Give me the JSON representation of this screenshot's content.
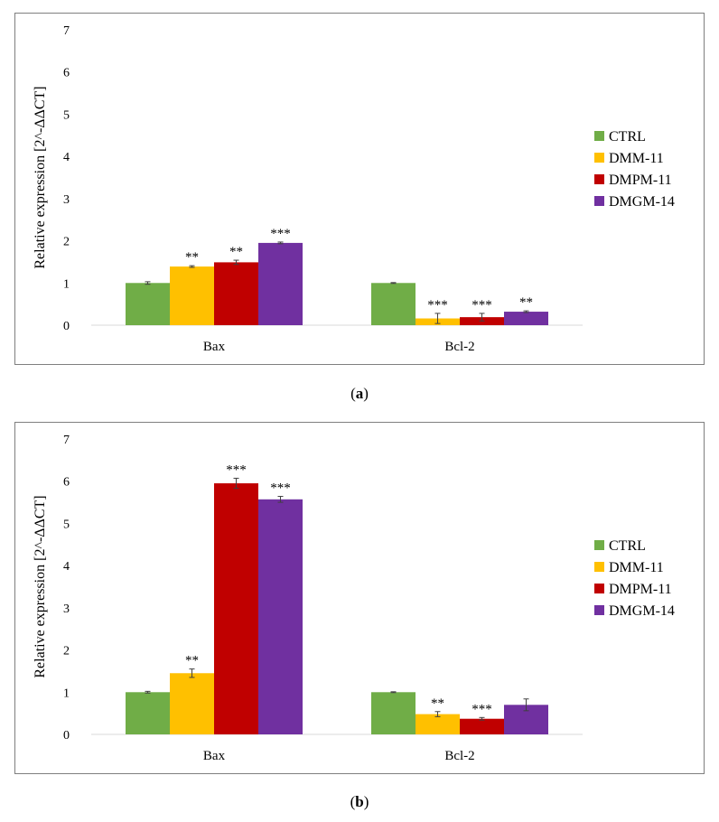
{
  "chart_data": [
    {
      "type": "bar",
      "panel": "a",
      "caption_letter": "a",
      "categories": [
        "Bax",
        "Bcl-2"
      ],
      "series": [
        {
          "name": "CTRL",
          "color": "#70ad47",
          "values": [
            1.0,
            1.0
          ],
          "errors": [
            0.03,
            0.01
          ],
          "significance": [
            "",
            ""
          ]
        },
        {
          "name": "DMM-11",
          "color": "#ffc000",
          "values": [
            1.39,
            0.16
          ],
          "errors": [
            0.02,
            0.12
          ],
          "significance": [
            "**",
            "***"
          ]
        },
        {
          "name": "DMPM-11",
          "color": "#c00000",
          "values": [
            1.49,
            0.19
          ],
          "errors": [
            0.05,
            0.09
          ],
          "significance": [
            "**",
            "***"
          ]
        },
        {
          "name": "DMGM-14",
          "color": "#7030a0",
          "values": [
            1.95,
            0.32
          ],
          "errors": [
            0.02,
            0.02
          ],
          "significance": [
            "***",
            "**"
          ]
        }
      ],
      "ylabel": "Relative expression [2^-ΔΔCT]",
      "ylim": [
        0,
        7
      ],
      "yticks": [
        0,
        1,
        2,
        3,
        4,
        5,
        6,
        7
      ],
      "grid": false,
      "legend": "right"
    },
    {
      "type": "bar",
      "panel": "b",
      "caption_letter": "b",
      "categories": [
        "Bax",
        "Bcl-2"
      ],
      "series": [
        {
          "name": "CTRL",
          "color": "#70ad47",
          "values": [
            1.0,
            1.0
          ],
          "errors": [
            0.02,
            0.01
          ],
          "significance": [
            "",
            ""
          ]
        },
        {
          "name": "DMM-11",
          "color": "#ffc000",
          "values": [
            1.45,
            0.48
          ],
          "errors": [
            0.1,
            0.06
          ],
          "significance": [
            "**",
            "**"
          ]
        },
        {
          "name": "DMPM-11",
          "color": "#c00000",
          "values": [
            5.95,
            0.37
          ],
          "errors": [
            0.12,
            0.03
          ],
          "significance": [
            "***",
            "***"
          ]
        },
        {
          "name": "DMGM-14",
          "color": "#7030a0",
          "values": [
            5.57,
            0.7
          ],
          "errors": [
            0.07,
            0.14
          ],
          "significance": [
            "***",
            ""
          ]
        }
      ],
      "ylabel": "Relative expression [2^-ΔΔCT]",
      "ylim": [
        0,
        7
      ],
      "yticks": [
        0,
        1,
        2,
        3,
        4,
        5,
        6,
        7
      ],
      "grid": false,
      "legend": "right"
    }
  ]
}
